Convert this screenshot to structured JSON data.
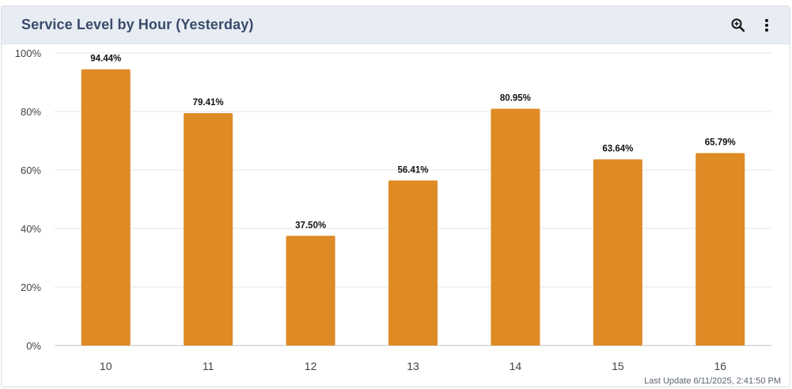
{
  "header": {
    "title": "Service Level by Hour (Yesterday)",
    "zoom_icon": "zoom-in-icon",
    "menu_icon": "more-vertical-icon"
  },
  "footer": {
    "last_update": "Last Update 6/11/2025, 2:41:50 PM"
  },
  "colors": {
    "bar": "#de8a25",
    "grid": "#e6e6e6",
    "axis": "#bfbfbf",
    "tick_text": "#444444",
    "label_text": "#111111"
  },
  "chart_data": {
    "type": "bar",
    "title": "Service Level by Hour (Yesterday)",
    "categories": [
      "10",
      "11",
      "12",
      "13",
      "14",
      "15",
      "16"
    ],
    "values": [
      94.44,
      79.41,
      37.5,
      56.41,
      80.95,
      63.64,
      65.79
    ],
    "data_labels": [
      "94.44%",
      "79.41%",
      "37.50%",
      "56.41%",
      "80.95%",
      "63.64%",
      "65.79%"
    ],
    "ylim": [
      0,
      100
    ],
    "yticks": [
      0,
      20,
      40,
      60,
      80,
      100
    ],
    "ytick_labels": [
      "0%",
      "20%",
      "40%",
      "60%",
      "80%",
      "100%"
    ],
    "xlabel": "",
    "ylabel": "",
    "grid": true,
    "legend": "none"
  }
}
